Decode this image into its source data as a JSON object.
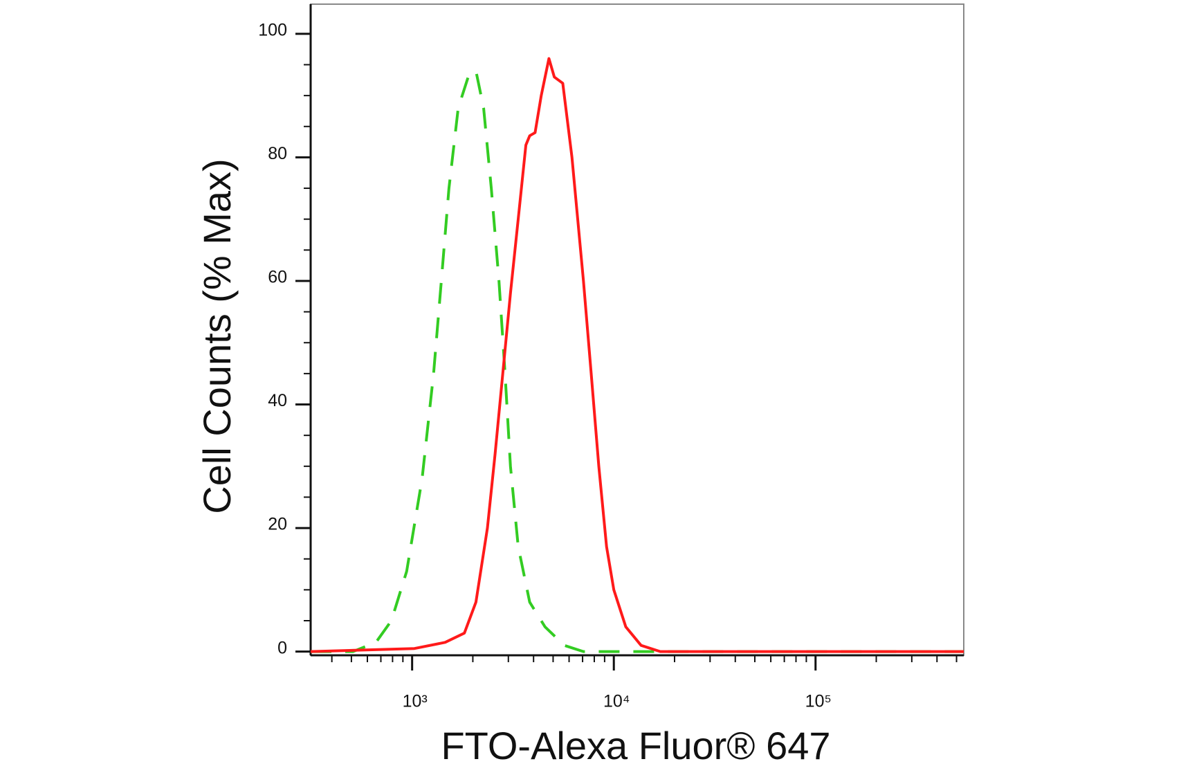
{
  "chart_data": {
    "type": "line",
    "xlabel": "FTO-Alexa Fluor® 647",
    "ylabel": "Cell Counts (% Max)",
    "xscale": "log",
    "xlim": [
      314,
      543000
    ],
    "ylim": [
      -0.6,
      104.8
    ],
    "xticks": [
      {
        "value": 1000,
        "label": "10³"
      },
      {
        "value": 10000,
        "label": "10⁴"
      },
      {
        "value": 100000,
        "label": "10⁵"
      }
    ],
    "yticks": [
      0,
      20,
      40,
      60,
      80,
      100
    ],
    "grid": false,
    "series": [
      {
        "color": "#33cc22",
        "dash": true,
        "x": [
          314,
          509,
          662,
          789,
          940,
          1121,
          1278,
          1396,
          1523,
          1693,
          1897,
          2071,
          2261,
          2468,
          2694,
          2890,
          3073,
          3356,
          3827,
          4560,
          5678,
          7070,
          10000,
          543000
        ],
        "values": [
          0,
          0,
          1.5,
          5,
          13,
          28,
          45,
          60,
          75,
          88,
          93,
          94,
          88,
          75,
          60,
          45,
          30,
          17,
          8,
          4,
          1,
          0,
          0,
          0
        ]
      },
      {
        "color": "#ff1a1a",
        "dash": false,
        "x": [
          314,
          1027,
          1458,
          1816,
          2071,
          2362,
          2578,
          2815,
          3073,
          3356,
          3663,
          3827,
          4069,
          4365,
          4765,
          5068,
          5580,
          6200,
          7070,
          7720,
          8427,
          9200,
          10000,
          11460,
          13650,
          17000,
          543000
        ],
        "values": [
          0,
          0.5,
          1.5,
          3,
          8,
          20,
          32,
          45,
          58,
          70,
          82,
          83.5,
          84,
          90,
          96,
          93,
          92,
          80,
          60,
          45,
          30,
          17,
          10,
          4,
          1,
          0,
          0
        ]
      }
    ]
  }
}
